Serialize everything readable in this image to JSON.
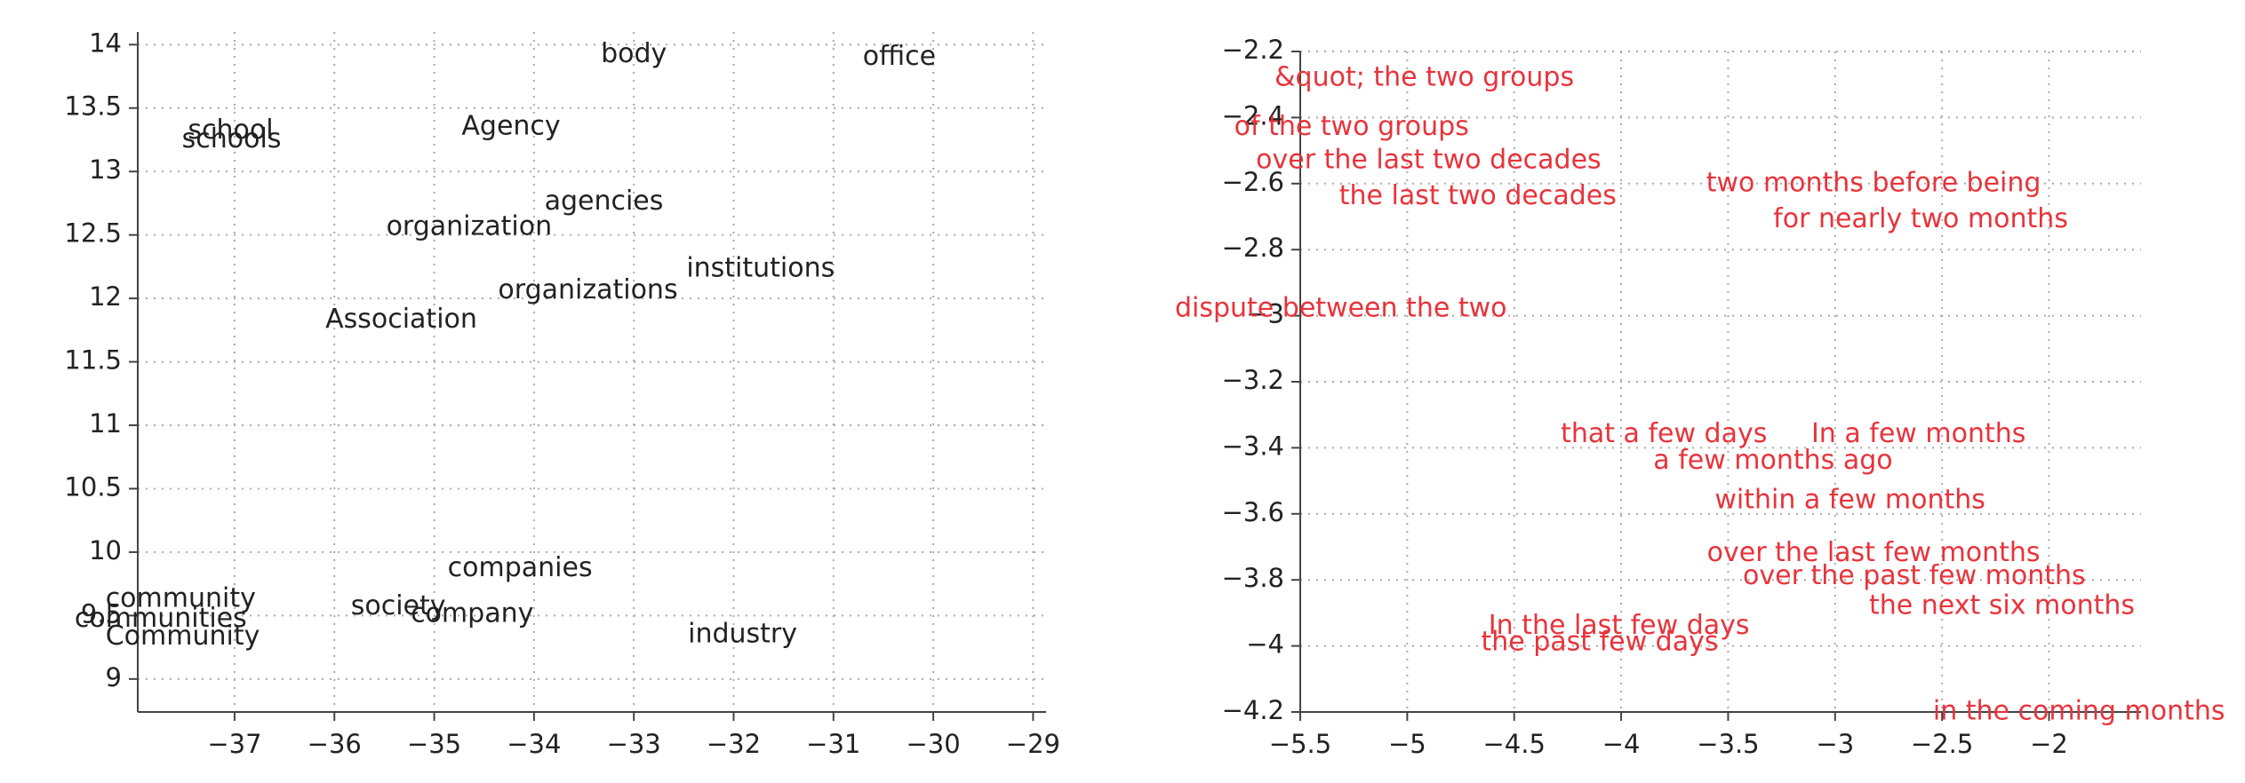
{
  "chart_data": [
    {
      "type": "scatter",
      "color": "#222222",
      "grid": true,
      "labels": [
        "body",
        "office",
        "school",
        "schools",
        "Agency",
        "agencies",
        "organization",
        "institutions",
        "organizations",
        "Association",
        "companies",
        "community",
        "communities",
        "Community",
        "society",
        "company",
        "industry"
      ],
      "x": [
        -33.0,
        -30.34,
        -37.04,
        -37.03,
        -34.23,
        -33.3,
        -34.65,
        -31.73,
        -33.46,
        -35.33,
        -34.14,
        -37.54,
        -37.74,
        -37.52,
        -35.36,
        -34.62,
        -31.91
      ],
      "y": [
        13.92,
        13.9,
        13.32,
        13.25,
        13.35,
        12.76,
        12.56,
        12.23,
        12.06,
        11.83,
        9.87,
        9.63,
        9.47,
        9.33,
        9.57,
        9.51,
        9.35
      ],
      "xlim": [
        -37.97,
        -28.87
      ],
      "ylim": [
        8.74,
        14.1
      ],
      "xticks": [
        {
          "value": -37,
          "label": "−37"
        },
        {
          "value": -36,
          "label": "−36"
        },
        {
          "value": -35,
          "label": "−35"
        },
        {
          "value": -34,
          "label": "−34"
        },
        {
          "value": -33,
          "label": "−33"
        },
        {
          "value": -32,
          "label": "−32"
        },
        {
          "value": -31,
          "label": "−31"
        },
        {
          "value": -30,
          "label": "−30"
        },
        {
          "value": -29,
          "label": "−29"
        }
      ],
      "yticks": [
        9,
        9.5,
        10,
        10.5,
        11,
        11.5,
        12,
        12.5,
        13,
        13.5,
        14
      ]
    },
    {
      "type": "scatter",
      "color": "#e8333b",
      "grid": true,
      "labels": [
        "&quot; the two groups",
        "of the two groups",
        "over the last two decades",
        "the last two decades",
        "two months before being",
        "for nearly two months",
        "dispute between the two",
        "that a few days",
        "In a few months",
        "a few months ago",
        "within a few months",
        "over the last few months",
        "over the past few months",
        "the next six months",
        "In the last few days",
        "the past few days",
        "in the coming months"
      ],
      "x": [
        -4.92,
        -5.26,
        -4.9,
        -4.67,
        -2.82,
        -2.6,
        -5.31,
        -3.8,
        -2.61,
        -3.29,
        -2.93,
        -2.82,
        -2.63,
        -2.22,
        -4.01,
        -4.1,
        -1.86
      ],
      "y": [
        -2.28,
        -2.43,
        -2.53,
        -2.64,
        -2.6,
        -2.71,
        -2.98,
        -3.36,
        -3.36,
        -3.44,
        -3.56,
        -3.72,
        -3.79,
        -3.88,
        -3.94,
        -3.99,
        -4.2
      ],
      "xlim": [
        -5.5,
        -1.57
      ],
      "ylim": [
        -4.2,
        -2.2
      ],
      "xticks": [
        {
          "value": -5.5,
          "label": "−5.5"
        },
        {
          "value": -5,
          "label": "−5"
        },
        {
          "value": -4.5,
          "label": "−4.5"
        },
        {
          "value": -4,
          "label": "−4"
        },
        {
          "value": -3.5,
          "label": "−3.5"
        },
        {
          "value": -3,
          "label": "−3"
        },
        {
          "value": -2.5,
          "label": "−2.5"
        },
        {
          "value": -2,
          "label": "−2"
        }
      ],
      "yticks": [
        {
          "value": -2.2,
          "label": "−2.2"
        },
        {
          "value": -2.4,
          "label": "−2.4"
        },
        {
          "value": -2.6,
          "label": "−2.6"
        },
        {
          "value": -2.8,
          "label": "−2.8"
        },
        {
          "value": -3,
          "label": "−3"
        },
        {
          "value": -3.2,
          "label": "−3.2"
        },
        {
          "value": -3.4,
          "label": "−3.4"
        },
        {
          "value": -3.6,
          "label": "−3.6"
        },
        {
          "value": -3.8,
          "label": "−3.8"
        },
        {
          "value": -4,
          "label": "−4"
        },
        {
          "value": -4.2,
          "label": "−4.2"
        }
      ]
    }
  ]
}
